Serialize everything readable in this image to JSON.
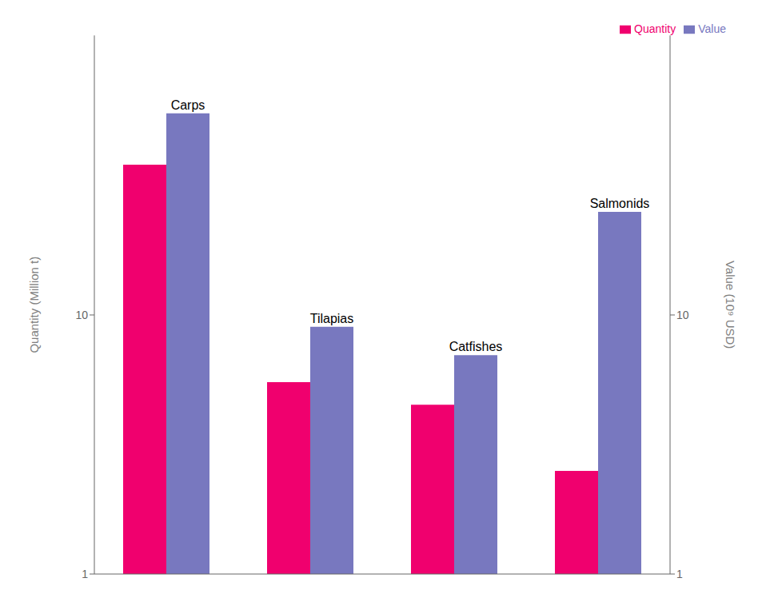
{
  "chart_data": {
    "type": "bar",
    "categories": [
      "Carps",
      "Tilapias",
      "Catfishes",
      "Salmonids"
    ],
    "series": [
      {
        "name": "Quantity",
        "color": "#F0006E",
        "values": [
          38,
          5.5,
          4.5,
          2.5
        ]
      },
      {
        "name": "Value",
        "color": "#7878BF",
        "values": [
          60,
          9.0,
          7.0,
          25
        ],
        "axis": "y2"
      }
    ],
    "ylabel": "Quantity (Million t)",
    "y2label": "Value (10⁹ USD)",
    "log": "y",
    "ylim": [
      1,
      120
    ],
    "yticks": [
      1,
      10
    ],
    "y2lim": [
      1,
      120
    ],
    "y2ticks": [
      1,
      10
    ],
    "legend": "upper right",
    "tick_labels": "y"
  }
}
